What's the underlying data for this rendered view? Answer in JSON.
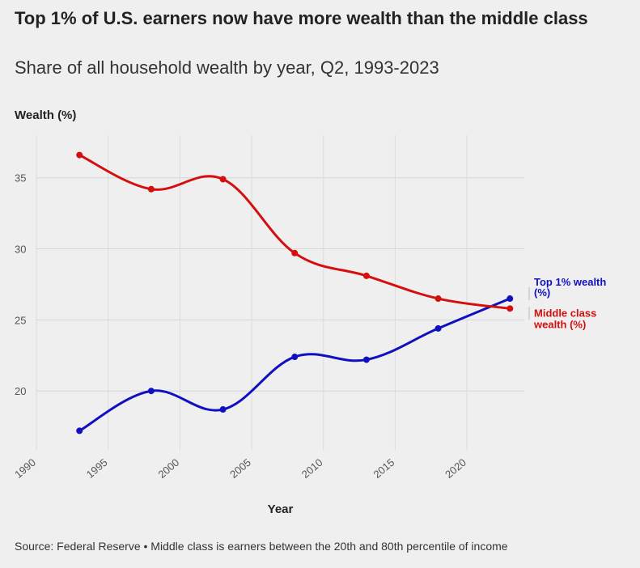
{
  "title": "Top 1% of U.S. earners now have more wealth than the middle class",
  "subtitle": "Share of all household wealth by year, Q2, 1993-2023",
  "footer": "Source: Federal Reserve • Middle class is earners between the 20th and 80th percentile of income",
  "chart_data": {
    "type": "line",
    "ylabel": "Wealth (%)",
    "xlabel": "Year",
    "xlim": [
      1990,
      2024
    ],
    "ylim": [
      15.8,
      38
    ],
    "xticks": [
      1990,
      1995,
      2000,
      2005,
      2010,
      2015,
      2020
    ],
    "yticks": [
      20,
      25,
      30,
      35
    ],
    "grid": true,
    "legend": "inline-right",
    "series": [
      {
        "name_lines": [
          "Top 1% wealth",
          "(%)"
        ],
        "color": "#1010c0",
        "x": [
          1993,
          1998,
          2003,
          2008,
          2013,
          2018,
          2023
        ],
        "y": [
          17.2,
          20.0,
          18.7,
          22.4,
          22.2,
          24.4,
          26.5
        ]
      },
      {
        "name_lines": [
          "Middle class",
          "wealth (%)"
        ],
        "color": "#d40f0f",
        "x": [
          1993,
          1998,
          2003,
          2008,
          2013,
          2018,
          2023
        ],
        "y": [
          36.6,
          34.2,
          34.9,
          29.7,
          28.1,
          26.5,
          25.8
        ]
      }
    ]
  }
}
